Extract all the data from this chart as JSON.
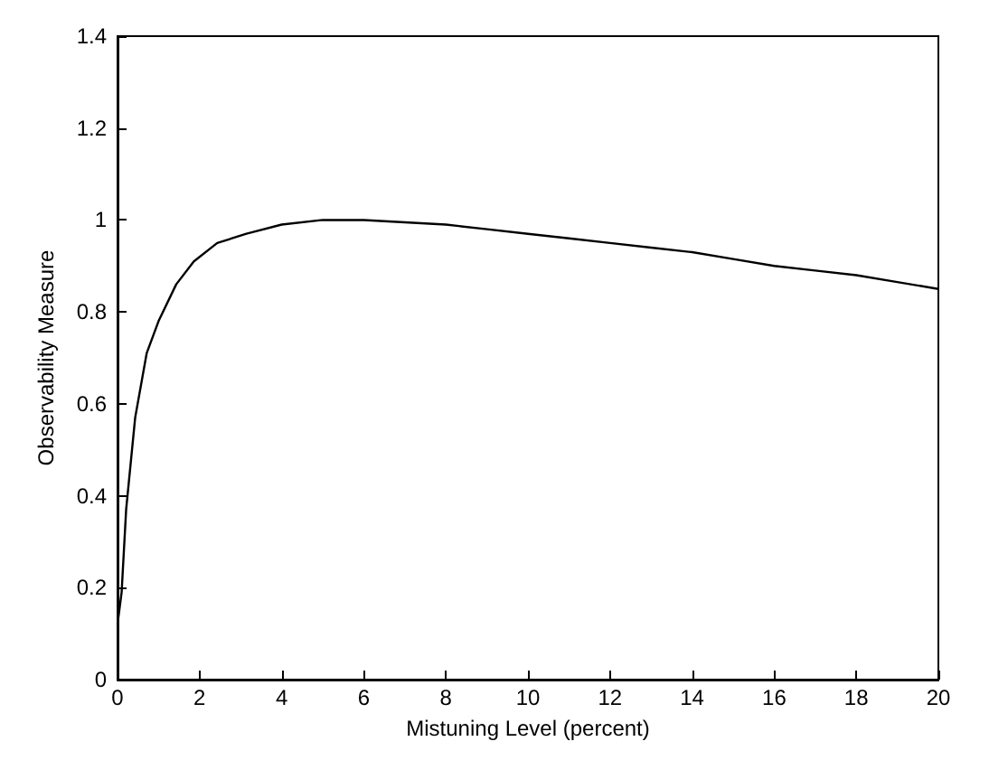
{
  "chart_data": {
    "type": "line",
    "xlabel": "Mistuning Level (percent)",
    "ylabel": "Observability Measure",
    "x": [
      0,
      0.1,
      0.21,
      0.43,
      0.71,
      1,
      1.43,
      1.86,
      2.43,
      3.14,
      4,
      5,
      6,
      7,
      8,
      9,
      10,
      11,
      12,
      13,
      14,
      15,
      16,
      17,
      18,
      19,
      20
    ],
    "series": [
      {
        "color": "#000000",
        "values": [
          0.12,
          0.19,
          0.37,
          0.57,
          0.71,
          0.78,
          0.86,
          0.91,
          0.95,
          0.97,
          0.99,
          1.0,
          1.0,
          0.995,
          0.99,
          0.98,
          0.97,
          0.96,
          0.95,
          0.94,
          0.93,
          0.915,
          0.9,
          0.89,
          0.88,
          0.865,
          0.85
        ]
      }
    ],
    "xlim": [
      0,
      20
    ],
    "xticks": [
      0,
      2,
      4,
      6,
      8,
      10,
      12,
      14,
      16,
      18,
      20
    ],
    "ylim": [
      0,
      1.4
    ],
    "yticks": [
      0,
      0.2,
      0.4,
      0.6,
      0.8,
      1,
      1.2,
      1.4
    ],
    "grid": false,
    "marker": "none",
    "line_style": "solid"
  }
}
